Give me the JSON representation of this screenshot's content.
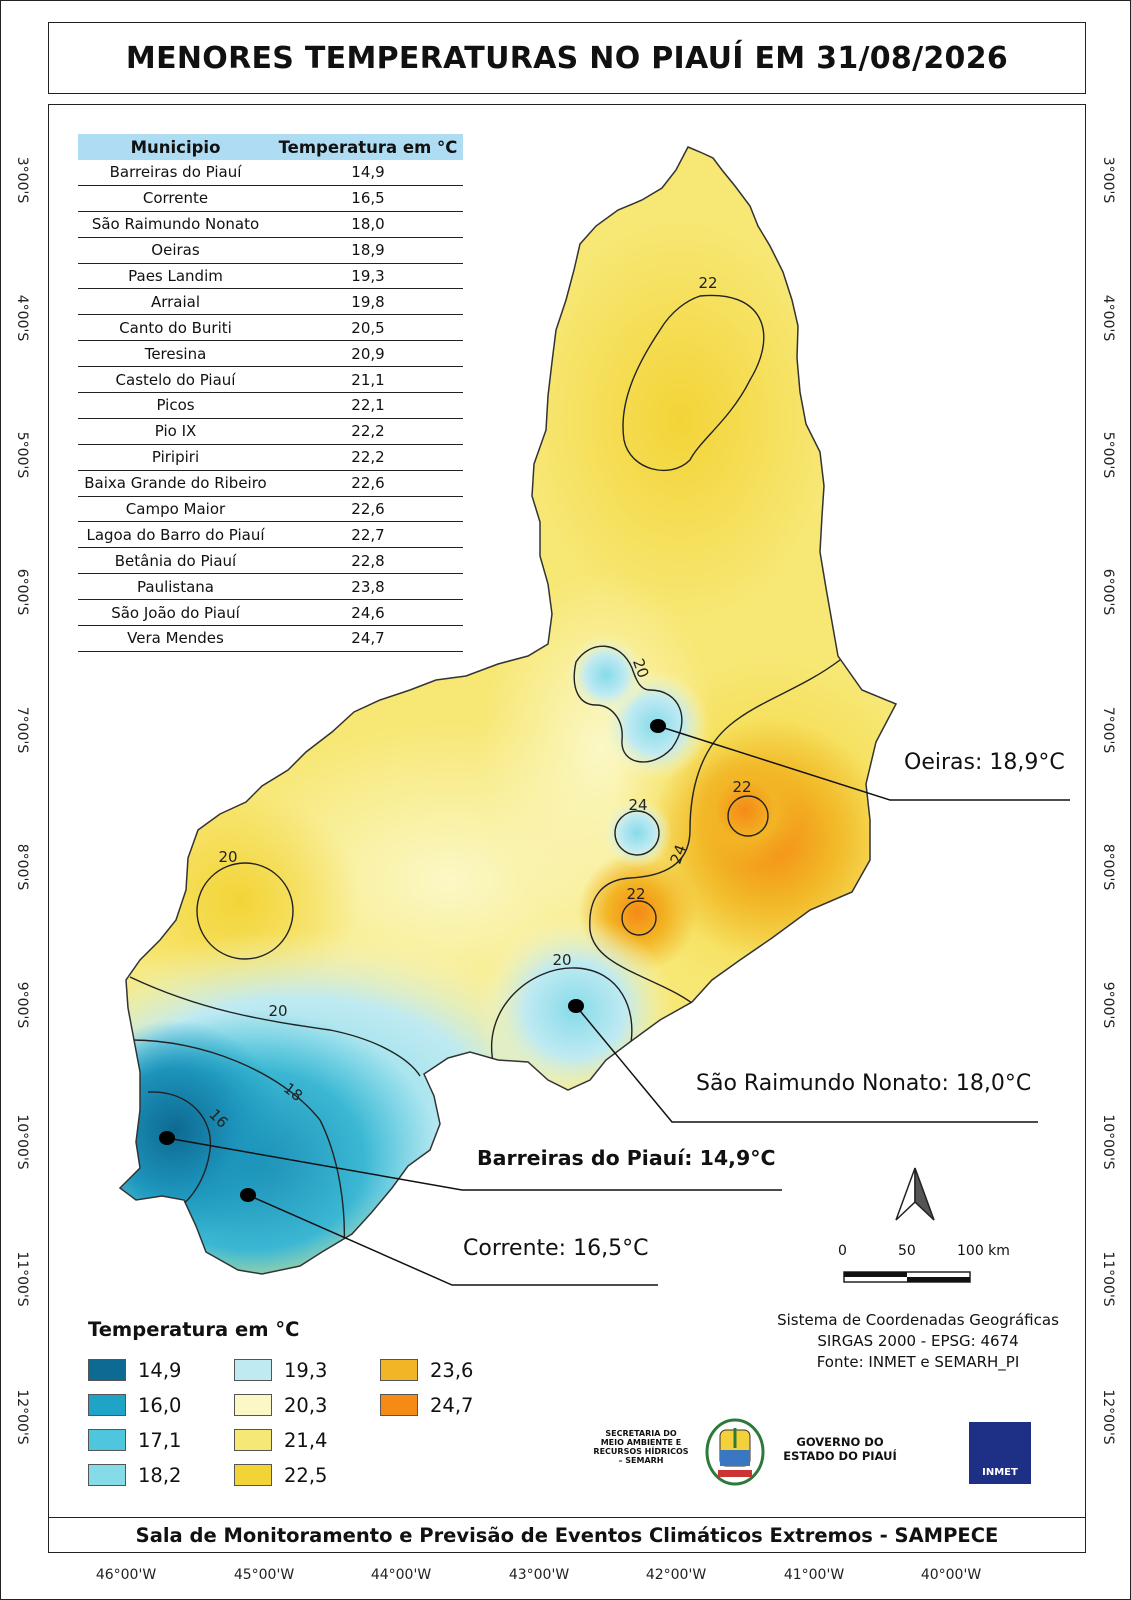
{
  "title": "MENORES TEMPERATURAS NO PIAUÍ EM 31/08/2026",
  "footer": "Sala de Monitoramento e Previsão de Eventos Climáticos Extremos - SAMPECE",
  "latitudes": [
    "3°00'S",
    "4°00'S",
    "5°00'S",
    "6°00'S",
    "7°00'S",
    "8°00'S",
    "9°00'S",
    "10°00'S",
    "11°00'S",
    "12°00'S"
  ],
  "longitudes": [
    "46°00'W",
    "45°00'W",
    "44°00'W",
    "43°00'W",
    "42°00'W",
    "41°00'W",
    "40°00'W"
  ],
  "table": {
    "header_municipio": "Municipio",
    "header_temp": "Temperatura em °C",
    "rows": [
      {
        "municipio": "Barreiras do Piauí",
        "temp": "14,9"
      },
      {
        "municipio": "Corrente",
        "temp": "16,5"
      },
      {
        "municipio": "São Raimundo Nonato",
        "temp": "18,0"
      },
      {
        "municipio": "Oeiras",
        "temp": "18,9"
      },
      {
        "municipio": "Paes Landim",
        "temp": "19,3"
      },
      {
        "municipio": "Arraial",
        "temp": "19,8"
      },
      {
        "municipio": "Canto do Buriti",
        "temp": "20,5"
      },
      {
        "municipio": "Teresina",
        "temp": "20,9"
      },
      {
        "municipio": "Castelo do Piauí",
        "temp": "21,1"
      },
      {
        "municipio": "Picos",
        "temp": "22,1"
      },
      {
        "municipio": "Pio IX",
        "temp": "22,2"
      },
      {
        "municipio": "Piripiri",
        "temp": "22,2"
      },
      {
        "municipio": "Baixa Grande do Ribeiro",
        "temp": "22,6"
      },
      {
        "municipio": "Campo Maior",
        "temp": "22,6"
      },
      {
        "municipio": "Lagoa do Barro do Piauí",
        "temp": "22,7"
      },
      {
        "municipio": "Betânia do Piauí",
        "temp": "22,8"
      },
      {
        "municipio": "Paulistana",
        "temp": "23,8"
      },
      {
        "municipio": "São João do Piauí",
        "temp": "24,6"
      },
      {
        "municipio": "Vera Mendes",
        "temp": "24,7"
      }
    ]
  },
  "callouts": {
    "oeiras": "Oeiras: 18,9°C",
    "sao_raimundo": "São Raimundo Nonato: 18,0°C",
    "barreiras": "Barreiras do Piauí: 14,9°C",
    "corrente": "Corrente: 16,5°C"
  },
  "contour_labels": [
    "22",
    "20",
    "20",
    "24",
    "22",
    "24",
    "22",
    "20",
    "20",
    "18",
    "16"
  ],
  "legend": {
    "title": "Temperatura em °C",
    "items": [
      {
        "label": "14,9",
        "color": "#0d6a92"
      },
      {
        "label": "16,0",
        "color": "#1fa3c6"
      },
      {
        "label": "17,1",
        "color": "#4ec6dd"
      },
      {
        "label": "18,2",
        "color": "#86dbe9"
      },
      {
        "label": "19,3",
        "color": "#bfeaf2"
      },
      {
        "label": "20,3",
        "color": "#fbf8c6"
      },
      {
        "label": "21,4",
        "color": "#f7e774"
      },
      {
        "label": "22,5",
        "color": "#f3d437"
      },
      {
        "label": "23,6",
        "color": "#f2b525"
      },
      {
        "label": "24,7",
        "color": "#f58a16"
      }
    ]
  },
  "scale": {
    "l0": "0",
    "l1": "50",
    "l2": "100 km"
  },
  "info": {
    "line1": "Sistema de Coordenadas Geográficas",
    "line2": "SIRGAS 2000 - EPSG: 4674",
    "line3": "Fonte: INMET e SEMARH_PI"
  },
  "logos": {
    "semarh": "SECRETARIA DO MEIO AMBIENTE E RECURSOS HÍDRICOS – SEMARH",
    "gov": "GOVERNO DO ESTADO DO PIAUÍ",
    "inmet": "INMET"
  }
}
